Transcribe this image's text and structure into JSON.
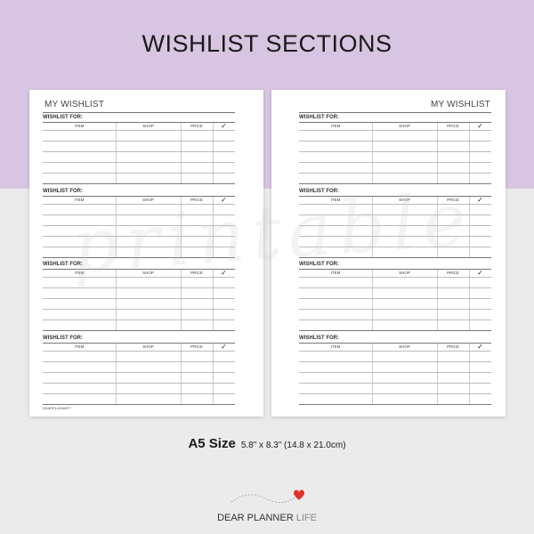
{
  "title": "WISHLIST SECTIONS",
  "pages": [
    {
      "title": "MY WISHLIST",
      "footer": "DEARPLANNER♡"
    },
    {
      "title": "MY WISHLIST",
      "footer": ""
    }
  ],
  "section_label": "WISHLIST FOR:",
  "columns": [
    "ITEM",
    "SHOP",
    "PRICE",
    "✓"
  ],
  "sections_per_page": 4,
  "rows_per_section": 5,
  "watermark": "printable",
  "size": {
    "label": "A5 Size",
    "dims": "5.8\" x 8.3\" (14.8 x 21.0cm)"
  },
  "brand": {
    "main": "DEAR PLANNER",
    "light": " LIFE"
  },
  "colors": {
    "top_bg": "#d8c5e1",
    "bottom_bg": "#ebebeb",
    "heart": "#e0302a"
  }
}
